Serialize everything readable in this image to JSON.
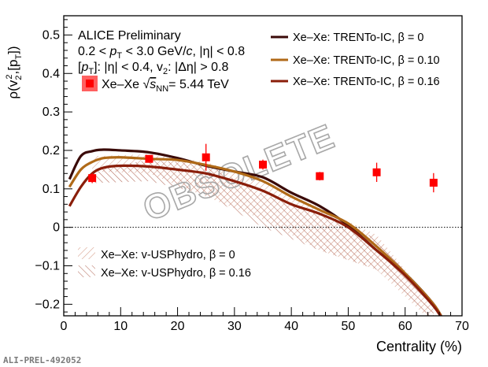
{
  "chart_data": {
    "type": "line",
    "title": "",
    "xlabel": "Centrality (%)",
    "ylabel": "ρ(v₂²,[pT])",
    "xlim": [
      0,
      70
    ],
    "ylim": [
      -0.23,
      0.55
    ],
    "x_ticks": [
      "0",
      "10",
      "20",
      "30",
      "40",
      "50",
      "60",
      "70"
    ],
    "y_ticks": [
      "−0.2",
      "−0.1",
      "0",
      "0.1",
      "0.2",
      "0.3",
      "0.4",
      "0.5"
    ],
    "x_tick_values": [
      0,
      10,
      20,
      30,
      40,
      50,
      60,
      70
    ],
    "y_tick_values": [
      -0.2,
      -0.1,
      0,
      0.1,
      0.2,
      0.3,
      0.4,
      0.5
    ],
    "grid": false,
    "zero_line": "dotted",
    "annotation": {
      "line1": "ALICE Preliminary",
      "line2": "0.2 < pT < 3.0 GeV/c, |η| < 0.8",
      "line3": "[pT]: |η| < 0.4, v2: |Δη| > 0.8"
    },
    "watermark": "OBSOLETE",
    "footer_label": "ALI-PREL-492052",
    "data_series": {
      "name": "Xe–Xe √sNN = 5.44 TeV",
      "legend_label": "Xe–Xe",
      "legend_energy": "= 5.44 TeV",
      "color": "#ff0000",
      "x": [
        5,
        15,
        25,
        35,
        45,
        55,
        65
      ],
      "y": [
        0.128,
        0.178,
        0.182,
        0.163,
        0.133,
        0.143,
        0.116
      ],
      "yerr": [
        0.013,
        0.01,
        0.035,
        0.013,
        0.011,
        0.025,
        0.025
      ]
    },
    "series": [
      {
        "name": "Xe–Xe: TRENTo-IC, β = 0",
        "color": "#3a0a08",
        "x": [
          1,
          3,
          5,
          7,
          10,
          15,
          20,
          25,
          30,
          35,
          40,
          45,
          50,
          55,
          60,
          65,
          67
        ],
        "y": [
          0.125,
          0.185,
          0.198,
          0.202,
          0.2,
          0.195,
          0.18,
          0.16,
          0.145,
          0.13,
          0.09,
          0.055,
          0.005,
          -0.06,
          -0.12,
          -0.2,
          -0.25
        ]
      },
      {
        "name": "Xe–Xe: TRENTo-IC, β = 0.10",
        "color": "#b06a18",
        "x": [
          1,
          3,
          5,
          7,
          10,
          15,
          20,
          25,
          30,
          35,
          40,
          45,
          50,
          55,
          60,
          65,
          67
        ],
        "y": [
          0.105,
          0.15,
          0.17,
          0.18,
          0.182,
          0.178,
          0.175,
          0.162,
          0.145,
          0.12,
          0.08,
          0.045,
          0.01,
          -0.05,
          -0.12,
          -0.2,
          -0.25
        ]
      },
      {
        "name": "Xe–Xe: TRENTo-IC, β = 0.16",
        "color": "#8a1e0a",
        "x": [
          1,
          3,
          5,
          7,
          10,
          15,
          20,
          25,
          30,
          35,
          40,
          45,
          50,
          55,
          60,
          65,
          67
        ],
        "y": [
          0.055,
          0.105,
          0.14,
          0.155,
          0.16,
          0.158,
          0.15,
          0.14,
          0.12,
          0.095,
          0.06,
          0.035,
          0.0,
          -0.06,
          -0.125,
          -0.205,
          -0.25
        ]
      }
    ],
    "bands": [
      {
        "name": "Xe–Xe: v-USPhydro, β = 0",
        "color": "#d49b86",
        "hatch": "left",
        "x": [
          5,
          15,
          25,
          35,
          45,
          55,
          65
        ],
        "y_low": [
          0.145,
          0.14,
          0.08,
          0.02,
          -0.06,
          -0.11,
          -0.25
        ],
        "y_high": [
          0.185,
          0.19,
          0.17,
          0.12,
          0.05,
          -0.02,
          -0.2
        ]
      },
      {
        "name": "Xe–Xe: v-USPhydro, β = 0.16",
        "color": "#b36a5a",
        "hatch": "right",
        "x": [
          5,
          15,
          25,
          35,
          45,
          55,
          65
        ],
        "y_low": [
          0.115,
          0.12,
          0.085,
          0.0,
          -0.06,
          -0.11,
          -0.25
        ],
        "y_high": [
          0.15,
          0.175,
          0.165,
          0.085,
          0.04,
          -0.03,
          -0.2
        ]
      }
    ]
  }
}
